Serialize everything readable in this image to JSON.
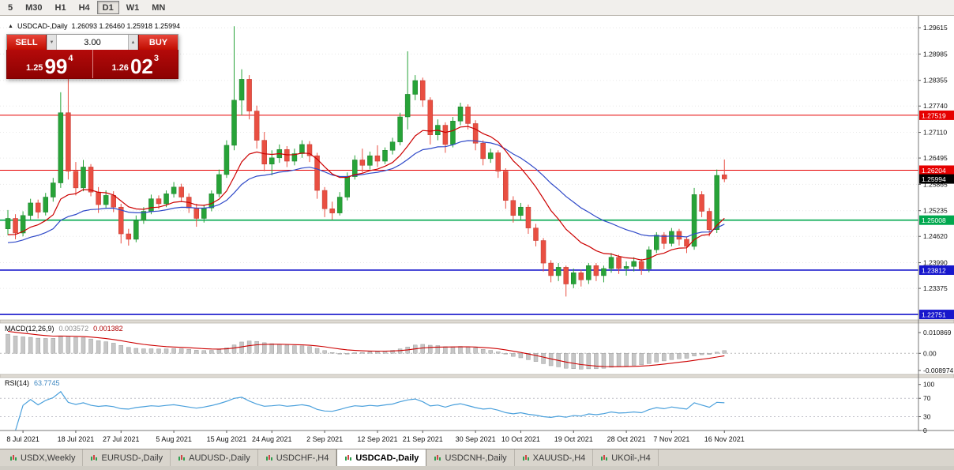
{
  "toolbar": {
    "timeframes": [
      {
        "label": "5",
        "active": false
      },
      {
        "label": "M30",
        "active": false
      },
      {
        "label": "H1",
        "active": false
      },
      {
        "label": "H4",
        "active": false
      },
      {
        "label": "D1",
        "active": true
      },
      {
        "label": "W1",
        "active": false
      },
      {
        "label": "MN",
        "active": false
      }
    ]
  },
  "chart_header": {
    "symbol_period": "USDCAD-,Daily",
    "ohlc": "1.26093 1.26460 1.25918 1.25994"
  },
  "trade_panel": {
    "sell_label": "SELL",
    "buy_label": "BUY",
    "volume": "3.00",
    "sell_price": {
      "prefix": "1.25",
      "big": "99",
      "sup": "4"
    },
    "buy_price": {
      "prefix": "1.26",
      "big": "02",
      "sup": "3"
    }
  },
  "indicators": {
    "macd_label": {
      "name": "MACD(12,26,9)",
      "main_value": "0.003572",
      "signal_value": "0.001382"
    },
    "rsi_label": {
      "name": "RSI(14)",
      "value": "63.7745"
    }
  },
  "tabs": [
    {
      "label": "USDX,Weekly",
      "active": false
    },
    {
      "label": "EURUSD-,Daily",
      "active": false
    },
    {
      "label": "AUDUSD-,Daily",
      "active": false
    },
    {
      "label": "USDCHF-,H4",
      "active": false
    },
    {
      "label": "USDCAD-,Daily",
      "active": true
    },
    {
      "label": "USDCNH-,Daily",
      "active": false
    },
    {
      "label": "XAUUSD-,H4",
      "active": false
    },
    {
      "label": "UKOil-,H4",
      "active": false
    }
  ],
  "chart_data": {
    "type": "candlestick",
    "symbol": "USDCAD",
    "timeframe": "Daily",
    "colors": {
      "up": "#27a338",
      "up_border": "#1c7e2b",
      "down": "#e94f42",
      "down_border": "#bf3a30",
      "grid": "#e8e8e8",
      "axis_text": "#111111"
    },
    "main": {
      "ylim": [
        1.2262,
        1.299
      ],
      "ticks": [
        "1.29615",
        "1.28985",
        "1.28355",
        "1.27740",
        "1.27110",
        "1.26495",
        "1.25865",
        "1.25235",
        "1.24620",
        "1.23990",
        "1.23375"
      ],
      "levels": [
        {
          "price": 1.27519,
          "label": "1.27519",
          "color": "#e60000",
          "width": 1
        },
        {
          "price": 1.26204,
          "label": "1.26204",
          "color": "#e60000",
          "width": 1
        },
        {
          "price": 1.25008,
          "label": "1.25008",
          "color": "#00a84e",
          "width": 1.6
        },
        {
          "price": 1.23812,
          "label": "1.23812",
          "color": "#1717cc",
          "width": 1.6
        },
        {
          "price": 1.22751,
          "label": "1.22751",
          "color": "#1717cc",
          "width": 1.6
        }
      ],
      "current_price": {
        "value": 1.25994,
        "label": "1.25994",
        "bg": "#000000"
      },
      "ma_fast": {
        "period": 12,
        "seed": 1.2466,
        "color": "#cc0000"
      },
      "ma_slow": {
        "period": 26,
        "seed": 1.2447,
        "color": "#2f49c8"
      },
      "ohlc": [
        [
          1.248,
          1.2525,
          1.2465,
          1.2505
        ],
        [
          1.2505,
          1.2515,
          1.2455,
          1.247
        ],
        [
          1.247,
          1.2522,
          1.2462,
          1.2512
        ],
        [
          1.2512,
          1.2552,
          1.25,
          1.2542
        ],
        [
          1.2542,
          1.255,
          1.2505,
          1.252
        ],
        [
          1.252,
          1.2566,
          1.2512,
          1.2556
        ],
        [
          1.2556,
          1.2602,
          1.2545,
          1.259
        ],
        [
          1.259,
          1.2807,
          1.2578,
          1.2758
        ],
        [
          1.2758,
          1.284,
          1.2598,
          1.2618
        ],
        [
          1.2618,
          1.264,
          1.256,
          1.2578
        ],
        [
          1.2578,
          1.2645,
          1.257,
          1.2628
        ],
        [
          1.2628,
          1.2635,
          1.2558,
          1.2568
        ],
        [
          1.2568,
          1.258,
          1.2518,
          1.2538
        ],
        [
          1.2538,
          1.2572,
          1.2528,
          1.256
        ],
        [
          1.256,
          1.257,
          1.252,
          1.2532
        ],
        [
          1.2532,
          1.254,
          1.2445,
          1.2468
        ],
        [
          1.2468,
          1.248,
          1.244,
          1.2455
        ],
        [
          1.2455,
          1.2512,
          1.2448,
          1.25
        ],
        [
          1.25,
          1.2532,
          1.2492,
          1.2522
        ],
        [
          1.2522,
          1.2562,
          1.2515,
          1.2552
        ],
        [
          1.2552,
          1.256,
          1.2528,
          1.254
        ],
        [
          1.254,
          1.2572,
          1.2532,
          1.2564
        ],
        [
          1.2564,
          1.2592,
          1.2555,
          1.258
        ],
        [
          1.258,
          1.2588,
          1.2545,
          1.2556
        ],
        [
          1.2556,
          1.2565,
          1.2518,
          1.253
        ],
        [
          1.253,
          1.254,
          1.2485,
          1.2505
        ],
        [
          1.2505,
          1.2538,
          1.2495,
          1.253
        ],
        [
          1.253,
          1.2572,
          1.2522,
          1.2564
        ],
        [
          1.2564,
          1.2622,
          1.2556,
          1.261
        ],
        [
          1.261,
          1.2692,
          1.2602,
          1.268
        ],
        [
          1.268,
          1.2965,
          1.2668,
          1.2788
        ],
        [
          1.2788,
          1.2862,
          1.2752,
          1.2838
        ],
        [
          1.2838,
          1.2848,
          1.2742,
          1.2762
        ],
        [
          1.2762,
          1.2775,
          1.2672,
          1.2692
        ],
        [
          1.2692,
          1.2712,
          1.2618,
          1.2635
        ],
        [
          1.2635,
          1.2668,
          1.2608,
          1.265
        ],
        [
          1.265,
          1.2682,
          1.2638,
          1.267
        ],
        [
          1.267,
          1.2678,
          1.2628,
          1.2642
        ],
        [
          1.2642,
          1.2672,
          1.2632,
          1.266
        ],
        [
          1.266,
          1.2692,
          1.265,
          1.2682
        ],
        [
          1.2682,
          1.269,
          1.264,
          1.2655
        ],
        [
          1.2655,
          1.2662,
          1.2552,
          1.2572
        ],
        [
          1.2572,
          1.258,
          1.2508,
          1.2528
        ],
        [
          1.2528,
          1.2545,
          1.2502,
          1.2518
        ],
        [
          1.2518,
          1.2568,
          1.2512,
          1.2556
        ],
        [
          1.2556,
          1.2615,
          1.2548,
          1.2605
        ],
        [
          1.2605,
          1.2656,
          1.2598,
          1.2645
        ],
        [
          1.2645,
          1.2672,
          1.2615,
          1.2632
        ],
        [
          1.2632,
          1.2665,
          1.2622,
          1.2655
        ],
        [
          1.2655,
          1.268,
          1.2628,
          1.2642
        ],
        [
          1.2642,
          1.2675,
          1.2635,
          1.2668
        ],
        [
          1.2668,
          1.2698,
          1.2658,
          1.2688
        ],
        [
          1.2688,
          1.2758,
          1.268,
          1.2748
        ],
        [
          1.2748,
          1.2905,
          1.2718,
          1.2802
        ],
        [
          1.2802,
          1.2848,
          1.2788,
          1.2835
        ],
        [
          1.2835,
          1.2842,
          1.2772,
          1.2788
        ],
        [
          1.2788,
          1.2795,
          1.2682,
          1.2705
        ],
        [
          1.2705,
          1.2742,
          1.2692,
          1.2728
        ],
        [
          1.2728,
          1.2735,
          1.2662,
          1.2682
        ],
        [
          1.2682,
          1.2748,
          1.2675,
          1.2738
        ],
        [
          1.2738,
          1.2782,
          1.2728,
          1.2772
        ],
        [
          1.2772,
          1.2778,
          1.2718,
          1.2732
        ],
        [
          1.2732,
          1.274,
          1.2668,
          1.2685
        ],
        [
          1.2685,
          1.2692,
          1.2632,
          1.2648
        ],
        [
          1.2648,
          1.2672,
          1.2638,
          1.2662
        ],
        [
          1.2662,
          1.2668,
          1.2602,
          1.2618
        ],
        [
          1.2618,
          1.2625,
          1.2528,
          1.2548
        ],
        [
          1.2548,
          1.2558,
          1.2495,
          1.2512
        ],
        [
          1.2512,
          1.2542,
          1.2502,
          1.2532
        ],
        [
          1.2532,
          1.2538,
          1.2468,
          1.2482
        ],
        [
          1.2482,
          1.2492,
          1.2438,
          1.2452
        ],
        [
          1.2452,
          1.2458,
          1.2378,
          1.2398
        ],
        [
          1.2398,
          1.2405,
          1.2352,
          1.2368
        ],
        [
          1.2368,
          1.2398,
          1.2355,
          1.2388
        ],
        [
          1.2388,
          1.2392,
          1.2318,
          1.2348
        ],
        [
          1.2348,
          1.2385,
          1.2338,
          1.2375
        ],
        [
          1.2375,
          1.2382,
          1.2342,
          1.2358
        ],
        [
          1.2358,
          1.2398,
          1.2348,
          1.2392
        ],
        [
          1.2392,
          1.2398,
          1.2355,
          1.2368
        ],
        [
          1.2368,
          1.2392,
          1.2352,
          1.2385
        ],
        [
          1.2385,
          1.2422,
          1.2375,
          1.2412
        ],
        [
          1.2412,
          1.2418,
          1.2372,
          1.2385
        ],
        [
          1.2385,
          1.2402,
          1.2368,
          1.239
        ],
        [
          1.239,
          1.2412,
          1.2378,
          1.2402
        ],
        [
          1.2402,
          1.2408,
          1.237,
          1.2384
        ],
        [
          1.2384,
          1.2438,
          1.2376,
          1.243
        ],
        [
          1.243,
          1.2472,
          1.2422,
          1.2465
        ],
        [
          1.2465,
          1.2472,
          1.2432,
          1.2445
        ],
        [
          1.2445,
          1.2482,
          1.2438,
          1.2474
        ],
        [
          1.2474,
          1.248,
          1.244,
          1.2455
        ],
        [
          1.2455,
          1.2462,
          1.2422,
          1.2438
        ],
        [
          1.2438,
          1.2578,
          1.243,
          1.2562
        ],
        [
          1.2562,
          1.257,
          1.2508,
          1.2522
        ],
        [
          1.2522,
          1.253,
          1.2462,
          1.2478
        ],
        [
          1.2478,
          1.2622,
          1.247,
          1.2608
        ],
        [
          1.26093,
          1.2646,
          1.25918,
          1.25994
        ]
      ]
    },
    "macd": {
      "params": [
        12,
        26,
        9
      ],
      "ylim": [
        -0.01105,
        0.01584
      ],
      "ticks": [
        {
          "label": "0.010869",
          "value": 0.010869
        },
        {
          "label": "0.00",
          "value": 0
        },
        {
          "label": "-0.008974",
          "value": -0.008974
        }
      ],
      "seed_fast_offset": -0.0015,
      "seed_slow_offset": -0.0115,
      "seed_signal": 0.0115,
      "hist_color": "#c6c6c6",
      "hist_border": "#909090",
      "signal_color": "#cc0000"
    },
    "rsi": {
      "period": 14,
      "ylim": [
        0,
        115
      ],
      "ticks": [
        {
          "label": "100",
          "value": 100,
          "dotted": false
        },
        {
          "label": "70",
          "value": 70,
          "dotted": true
        },
        {
          "label": "30",
          "value": 30,
          "dotted": true
        },
        {
          "label": "0",
          "value": 0,
          "dotted": false
        }
      ],
      "color": "#4aa0dc"
    },
    "dates": [
      {
        "label": "8 Jul 2021",
        "i": 2
      },
      {
        "label": "18 Jul 2021",
        "i": 9
      },
      {
        "label": "27 Jul 2021",
        "i": 15
      },
      {
        "label": "5 Aug 2021",
        "i": 22
      },
      {
        "label": "15 Aug 2021",
        "i": 29
      },
      {
        "label": "24 Aug 2021",
        "i": 35
      },
      {
        "label": "2 Sep 2021",
        "i": 42
      },
      {
        "label": "12 Sep 2021",
        "i": 49
      },
      {
        "label": "21 Sep 2021",
        "i": 55
      },
      {
        "label": "30 Sep 2021",
        "i": 62
      },
      {
        "label": "10 Oct 2021",
        "i": 68
      },
      {
        "label": "19 Oct 2021",
        "i": 75
      },
      {
        "label": "28 Oct 2021",
        "i": 82
      },
      {
        "label": "7 Nov 2021",
        "i": 88
      },
      {
        "label": "16 Nov 2021",
        "i": 95
      }
    ]
  }
}
